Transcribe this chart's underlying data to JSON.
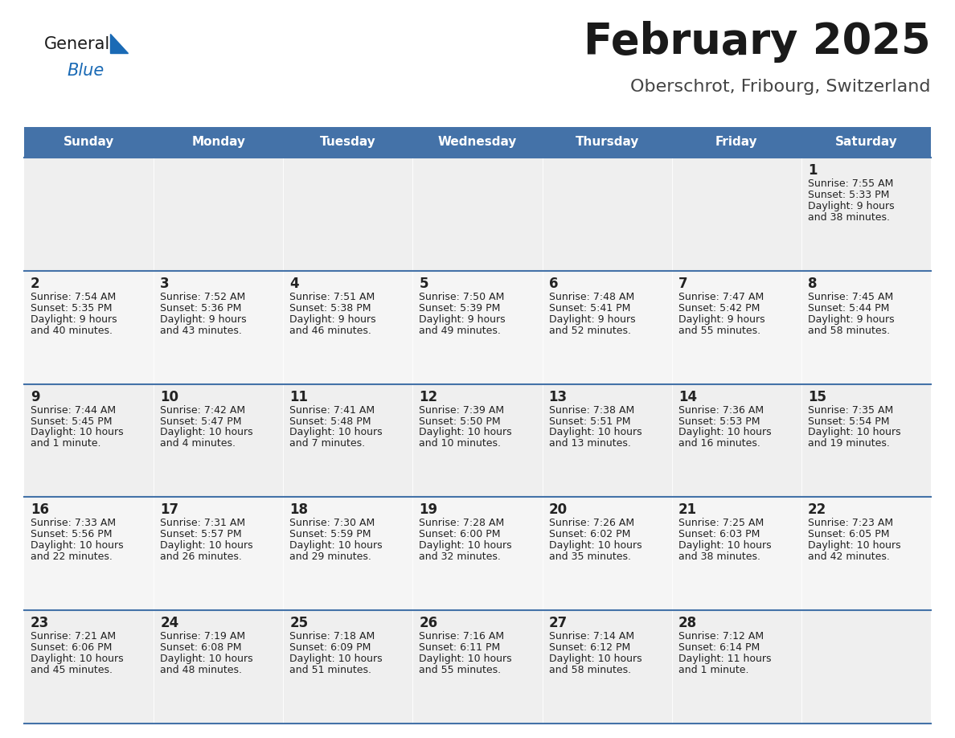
{
  "title": "February 2025",
  "subtitle": "Oberschrot, Fribourg, Switzerland",
  "header_bg": "#4472A8",
  "header_text_color": "#FFFFFF",
  "cell_bg_row0": "#EFEFEF",
  "cell_bg_row1": "#F5F5F5",
  "cell_bg_row2": "#EFEFEF",
  "cell_bg_row3": "#F5F5F5",
  "cell_bg_row4": "#EFEFEF",
  "border_color": "#4472A8",
  "text_color": "#222222",
  "day_names": [
    "Sunday",
    "Monday",
    "Tuesday",
    "Wednesday",
    "Thursday",
    "Friday",
    "Saturday"
  ],
  "days": [
    {
      "day": 1,
      "col": 6,
      "row": 0,
      "sunrise": "7:55 AM",
      "sunset": "5:33 PM",
      "daylight_line1": "Daylight: 9 hours",
      "daylight_line2": "and 38 minutes."
    },
    {
      "day": 2,
      "col": 0,
      "row": 1,
      "sunrise": "7:54 AM",
      "sunset": "5:35 PM",
      "daylight_line1": "Daylight: 9 hours",
      "daylight_line2": "and 40 minutes."
    },
    {
      "day": 3,
      "col": 1,
      "row": 1,
      "sunrise": "7:52 AM",
      "sunset": "5:36 PM",
      "daylight_line1": "Daylight: 9 hours",
      "daylight_line2": "and 43 minutes."
    },
    {
      "day": 4,
      "col": 2,
      "row": 1,
      "sunrise": "7:51 AM",
      "sunset": "5:38 PM",
      "daylight_line1": "Daylight: 9 hours",
      "daylight_line2": "and 46 minutes."
    },
    {
      "day": 5,
      "col": 3,
      "row": 1,
      "sunrise": "7:50 AM",
      "sunset": "5:39 PM",
      "daylight_line1": "Daylight: 9 hours",
      "daylight_line2": "and 49 minutes."
    },
    {
      "day": 6,
      "col": 4,
      "row": 1,
      "sunrise": "7:48 AM",
      "sunset": "5:41 PM",
      "daylight_line1": "Daylight: 9 hours",
      "daylight_line2": "and 52 minutes."
    },
    {
      "day": 7,
      "col": 5,
      "row": 1,
      "sunrise": "7:47 AM",
      "sunset": "5:42 PM",
      "daylight_line1": "Daylight: 9 hours",
      "daylight_line2": "and 55 minutes."
    },
    {
      "day": 8,
      "col": 6,
      "row": 1,
      "sunrise": "7:45 AM",
      "sunset": "5:44 PM",
      "daylight_line1": "Daylight: 9 hours",
      "daylight_line2": "and 58 minutes."
    },
    {
      "day": 9,
      "col": 0,
      "row": 2,
      "sunrise": "7:44 AM",
      "sunset": "5:45 PM",
      "daylight_line1": "Daylight: 10 hours",
      "daylight_line2": "and 1 minute."
    },
    {
      "day": 10,
      "col": 1,
      "row": 2,
      "sunrise": "7:42 AM",
      "sunset": "5:47 PM",
      "daylight_line1": "Daylight: 10 hours",
      "daylight_line2": "and 4 minutes."
    },
    {
      "day": 11,
      "col": 2,
      "row": 2,
      "sunrise": "7:41 AM",
      "sunset": "5:48 PM",
      "daylight_line1": "Daylight: 10 hours",
      "daylight_line2": "and 7 minutes."
    },
    {
      "day": 12,
      "col": 3,
      "row": 2,
      "sunrise": "7:39 AM",
      "sunset": "5:50 PM",
      "daylight_line1": "Daylight: 10 hours",
      "daylight_line2": "and 10 minutes."
    },
    {
      "day": 13,
      "col": 4,
      "row": 2,
      "sunrise": "7:38 AM",
      "sunset": "5:51 PM",
      "daylight_line1": "Daylight: 10 hours",
      "daylight_line2": "and 13 minutes."
    },
    {
      "day": 14,
      "col": 5,
      "row": 2,
      "sunrise": "7:36 AM",
      "sunset": "5:53 PM",
      "daylight_line1": "Daylight: 10 hours",
      "daylight_line2": "and 16 minutes."
    },
    {
      "day": 15,
      "col": 6,
      "row": 2,
      "sunrise": "7:35 AM",
      "sunset": "5:54 PM",
      "daylight_line1": "Daylight: 10 hours",
      "daylight_line2": "and 19 minutes."
    },
    {
      "day": 16,
      "col": 0,
      "row": 3,
      "sunrise": "7:33 AM",
      "sunset": "5:56 PM",
      "daylight_line1": "Daylight: 10 hours",
      "daylight_line2": "and 22 minutes."
    },
    {
      "day": 17,
      "col": 1,
      "row": 3,
      "sunrise": "7:31 AM",
      "sunset": "5:57 PM",
      "daylight_line1": "Daylight: 10 hours",
      "daylight_line2": "and 26 minutes."
    },
    {
      "day": 18,
      "col": 2,
      "row": 3,
      "sunrise": "7:30 AM",
      "sunset": "5:59 PM",
      "daylight_line1": "Daylight: 10 hours",
      "daylight_line2": "and 29 minutes."
    },
    {
      "day": 19,
      "col": 3,
      "row": 3,
      "sunrise": "7:28 AM",
      "sunset": "6:00 PM",
      "daylight_line1": "Daylight: 10 hours",
      "daylight_line2": "and 32 minutes."
    },
    {
      "day": 20,
      "col": 4,
      "row": 3,
      "sunrise": "7:26 AM",
      "sunset": "6:02 PM",
      "daylight_line1": "Daylight: 10 hours",
      "daylight_line2": "and 35 minutes."
    },
    {
      "day": 21,
      "col": 5,
      "row": 3,
      "sunrise": "7:25 AM",
      "sunset": "6:03 PM",
      "daylight_line1": "Daylight: 10 hours",
      "daylight_line2": "and 38 minutes."
    },
    {
      "day": 22,
      "col": 6,
      "row": 3,
      "sunrise": "7:23 AM",
      "sunset": "6:05 PM",
      "daylight_line1": "Daylight: 10 hours",
      "daylight_line2": "and 42 minutes."
    },
    {
      "day": 23,
      "col": 0,
      "row": 4,
      "sunrise": "7:21 AM",
      "sunset": "6:06 PM",
      "daylight_line1": "Daylight: 10 hours",
      "daylight_line2": "and 45 minutes."
    },
    {
      "day": 24,
      "col": 1,
      "row": 4,
      "sunrise": "7:19 AM",
      "sunset": "6:08 PM",
      "daylight_line1": "Daylight: 10 hours",
      "daylight_line2": "and 48 minutes."
    },
    {
      "day": 25,
      "col": 2,
      "row": 4,
      "sunrise": "7:18 AM",
      "sunset": "6:09 PM",
      "daylight_line1": "Daylight: 10 hours",
      "daylight_line2": "and 51 minutes."
    },
    {
      "day": 26,
      "col": 3,
      "row": 4,
      "sunrise": "7:16 AM",
      "sunset": "6:11 PM",
      "daylight_line1": "Daylight: 10 hours",
      "daylight_line2": "and 55 minutes."
    },
    {
      "day": 27,
      "col": 4,
      "row": 4,
      "sunrise": "7:14 AM",
      "sunset": "6:12 PM",
      "daylight_line1": "Daylight: 10 hours",
      "daylight_line2": "and 58 minutes."
    },
    {
      "day": 28,
      "col": 5,
      "row": 4,
      "sunrise": "7:12 AM",
      "sunset": "6:14 PM",
      "daylight_line1": "Daylight: 11 hours",
      "daylight_line2": "and 1 minute."
    }
  ],
  "num_rows": 5,
  "num_cols": 7,
  "logo_color_general": "#1a1a1a",
  "logo_color_blue": "#1a6ab5",
  "logo_triangle_color": "#1a6ab5",
  "title_fontsize": 38,
  "subtitle_fontsize": 16,
  "header_fontsize": 11,
  "day_num_fontsize": 12,
  "cell_text_fontsize": 9
}
